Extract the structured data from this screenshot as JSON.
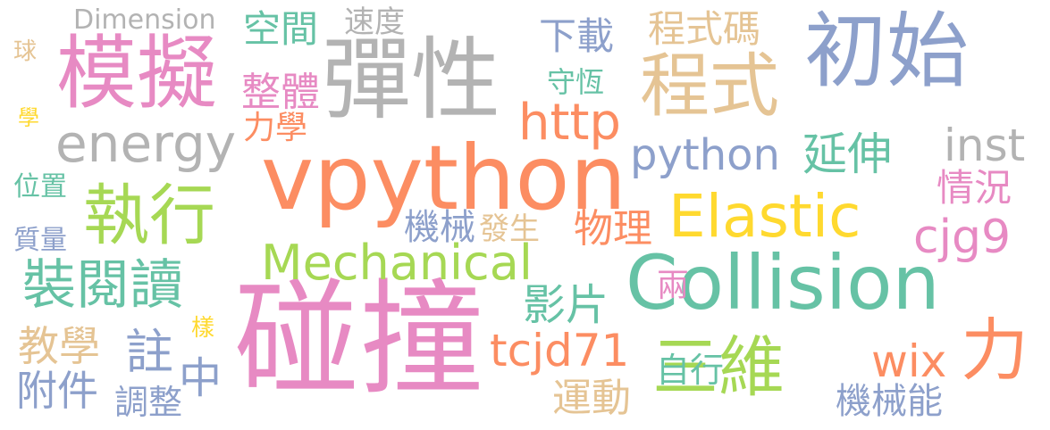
{
  "words": {
    "pengzhuang": "碰撞",
    "vpython": "vpython",
    "collision": "Collision",
    "moni": "模擬",
    "tanxing": "彈性",
    "chushi": "初始",
    "chengshi": "程式",
    "elastic": "Elastic",
    "mechanical": "Mechanical",
    "energy": "energy",
    "zhixing": "執行",
    "sanwei": "三維",
    "li": "力",
    "http": "http",
    "python": "python",
    "tcjd71": "tcjd71",
    "cjg9": "cjg9",
    "inst": "inst",
    "zhuangyuedu": "裝閱讀",
    "chengshima": "程式碼",
    "xiazai": "下載",
    "yanshen": "延伸",
    "qingkuang": "情況",
    "wix": "wix",
    "dimension": "Dimension",
    "kongjian": "空間",
    "sudu": "速度",
    "zhengti": "整體",
    "lixue": "力學",
    "shouheng": "守恆",
    "jixie": "機械",
    "fasheng": "發生",
    "wuli": "物理",
    "yingpian": "影片",
    "liang": "兩",
    "jiaoxue": "教學",
    "zhu": "註",
    "fujian": "附件",
    "tiaozheng": "調整",
    "zhong": "中",
    "yang": "樣",
    "yundong": "運動",
    "zixing": "自行",
    "jixieneng": "機械能",
    "qiu": "球",
    "xue": "學",
    "weizhi": "位置",
    "zhiliang": "質量"
  },
  "colors": {
    "pink": "#e78ac3",
    "orange": "#fc8d62",
    "teal": "#66c2a5",
    "blue": "#8da0cb",
    "green": "#a6d854",
    "yellow": "#ffd92f",
    "tan": "#e5c494",
    "gray": "#b3b3b3"
  }
}
